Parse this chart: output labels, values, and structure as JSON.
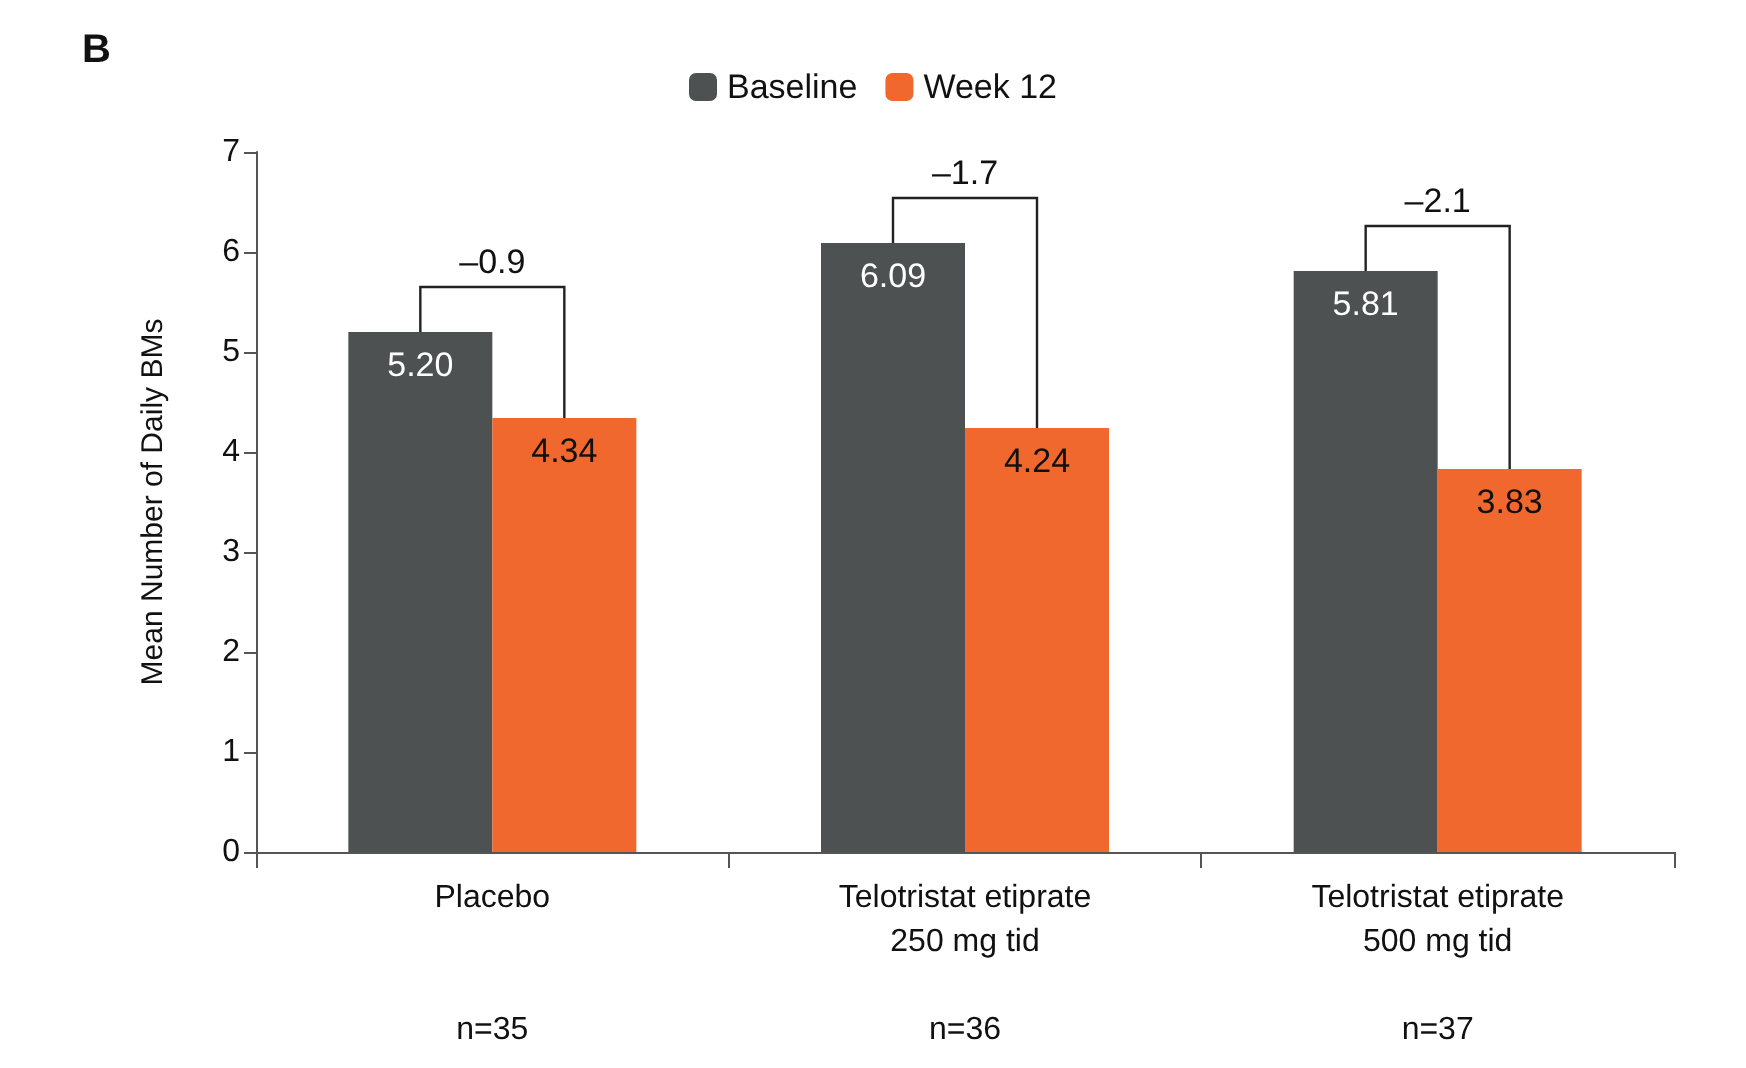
{
  "chart_data": {
    "type": "bar",
    "title": "B",
    "ylabel": "Mean Number of Daily BMs",
    "categories": [
      "Placebo\n\n\nn=35",
      "Telotristat etiprate\n250 mg tid\n\nn=36",
      "Telotristat etiprate\n500 mg tid\n\nn=37"
    ],
    "series": [
      {
        "name": "Baseline",
        "color": "#4d5152",
        "values": [
          5.2,
          6.09,
          5.81
        ],
        "value_labels": [
          "5.20",
          "6.09",
          "5.81"
        ]
      },
      {
        "name": "Week 12",
        "color": "#f0682d",
        "values": [
          4.34,
          4.24,
          3.83
        ],
        "value_labels": [
          "4.34",
          "4.24",
          "3.83"
        ]
      }
    ],
    "annotations": [
      "–0.9",
      "–1.7",
      "–2.1"
    ],
    "ylim": [
      0,
      7
    ],
    "yticks": [
      0,
      1,
      2,
      3,
      4,
      5,
      6,
      7
    ],
    "grid": false,
    "legend": "top"
  }
}
